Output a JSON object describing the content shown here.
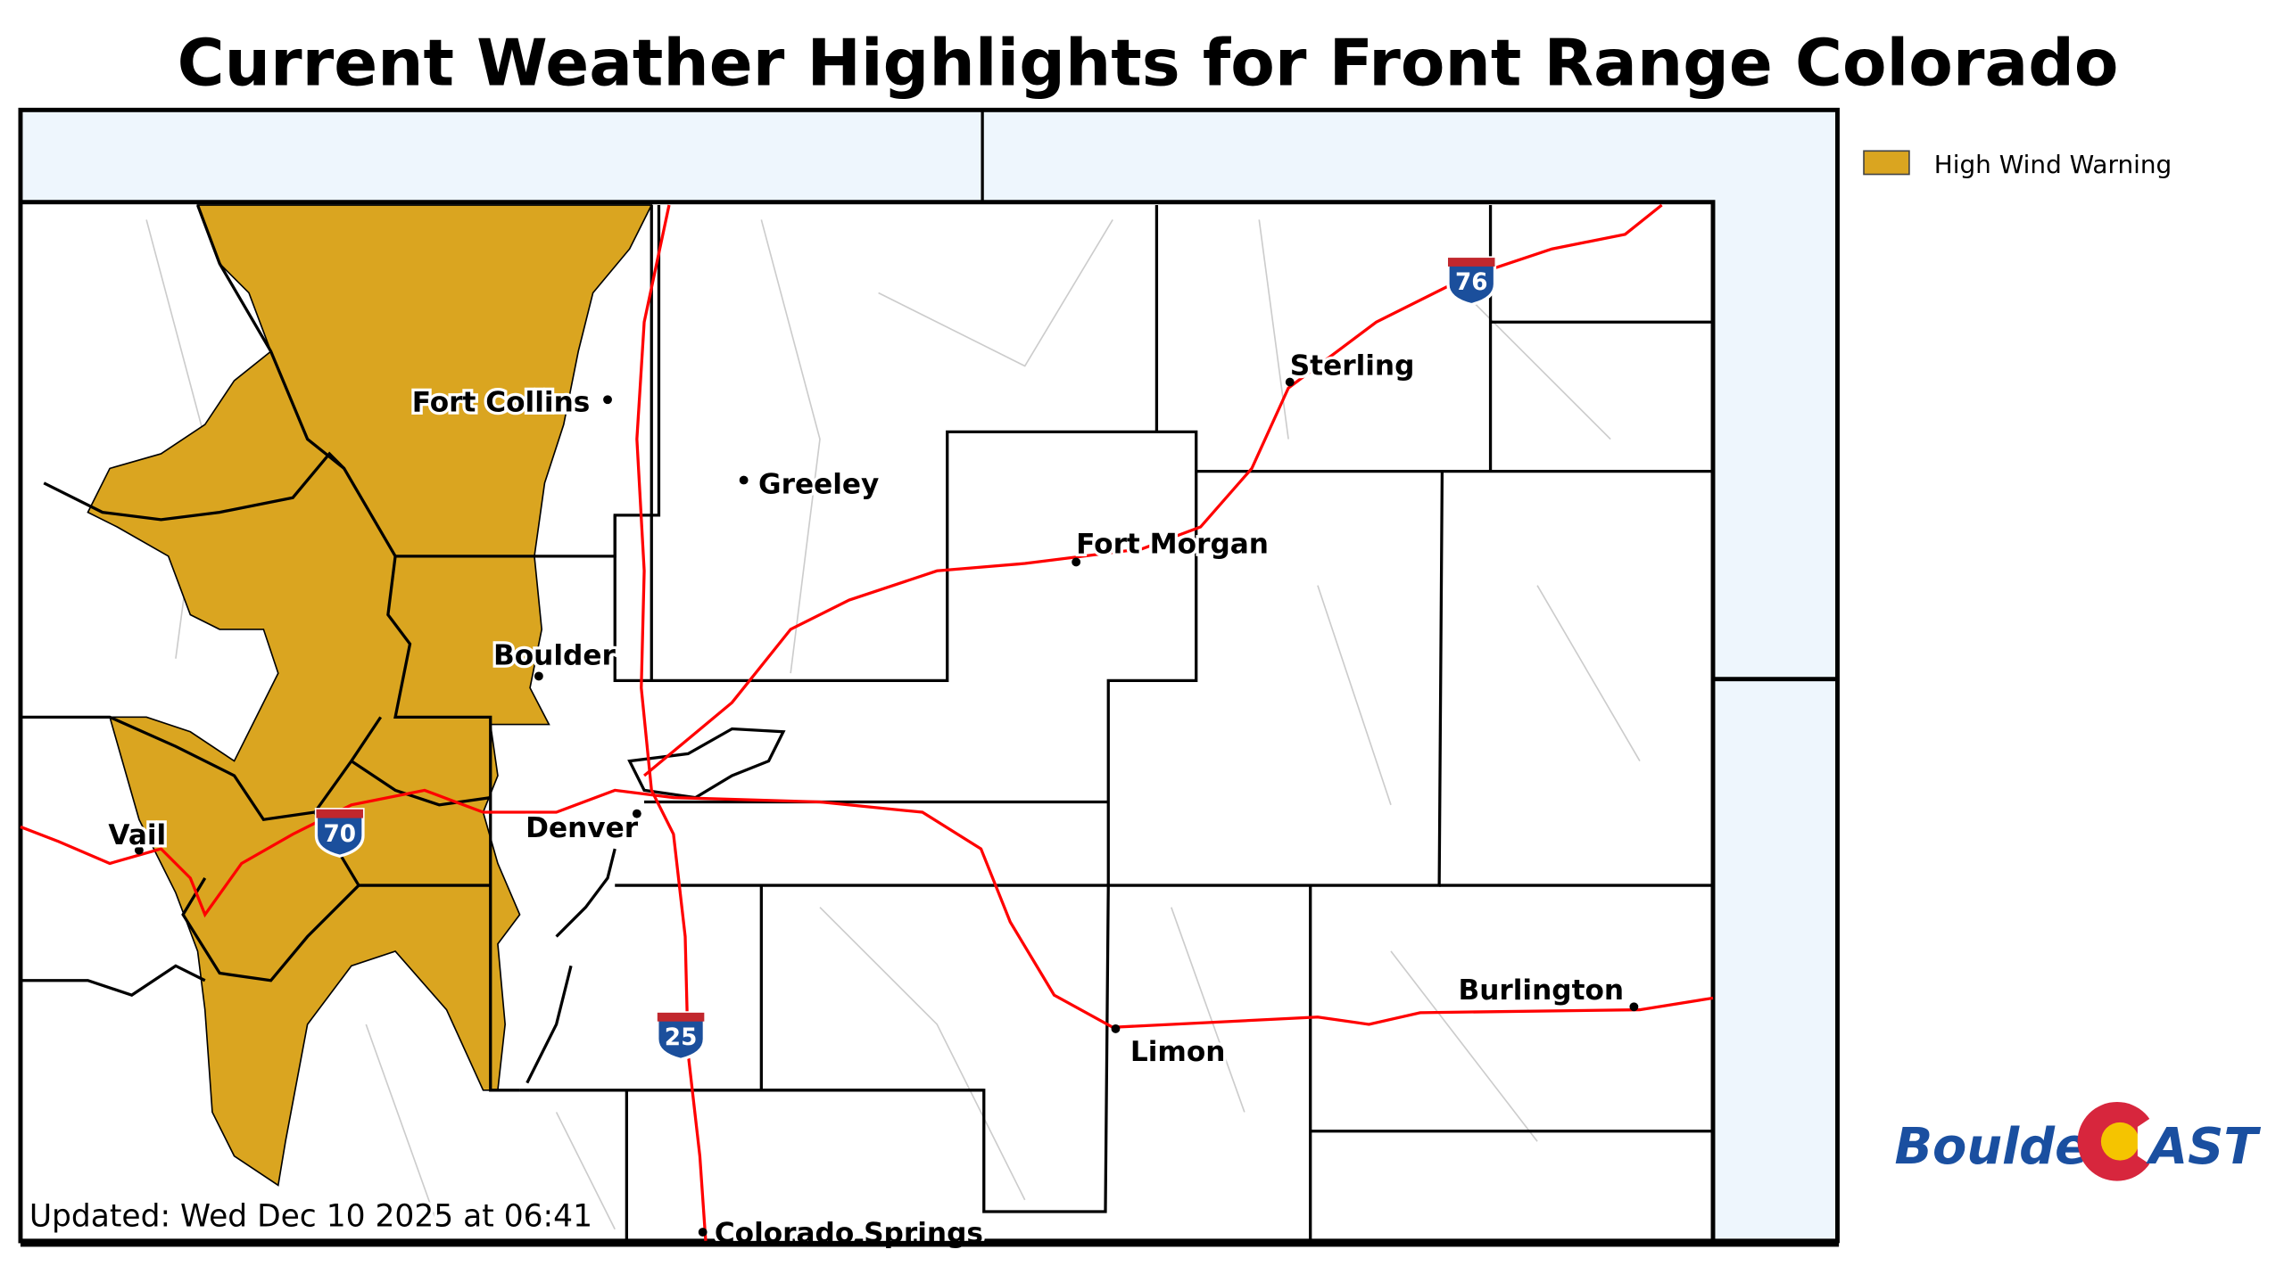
{
  "title": "Current Weather Highlights for Front Range Colorado",
  "legend": {
    "items": [
      {
        "label": "High Wind Warning",
        "color": "#DAA520"
      }
    ]
  },
  "colors": {
    "warning": "#DAA520",
    "highway": "#FF0000",
    "outside": "#EEF6FD"
  },
  "cities": [
    {
      "name": "Fort Collins"
    },
    {
      "name": "Greeley"
    },
    {
      "name": "Sterling"
    },
    {
      "name": "Fort Morgan"
    },
    {
      "name": "Boulder"
    },
    {
      "name": "Denver"
    },
    {
      "name": "Vail"
    },
    {
      "name": "Limon"
    },
    {
      "name": "Burlington"
    },
    {
      "name": "Colorado Springs"
    }
  ],
  "interstates": [
    {
      "number": "76"
    },
    {
      "number": "70"
    },
    {
      "number": "25"
    }
  ],
  "updated": "Updated: Wed Dec 10 2025 at 06:41",
  "logo": {
    "part1": "Boulder",
    "part2": "AST"
  }
}
